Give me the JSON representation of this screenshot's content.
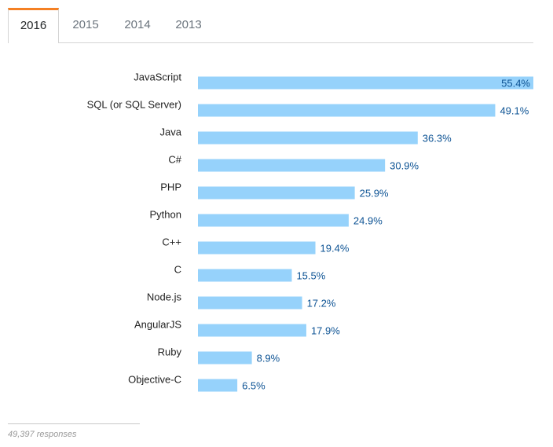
{
  "tabs": [
    {
      "label": "2016",
      "active": true
    },
    {
      "label": "2015",
      "active": false
    },
    {
      "label": "2014",
      "active": false
    },
    {
      "label": "2013",
      "active": false
    }
  ],
  "footer": {
    "responses": "49,397 responses"
  },
  "colors": {
    "bar": "#96d2fb",
    "value_label": "#0d5394",
    "active_tab_accent": "#f48024"
  },
  "chart_data": {
    "type": "bar",
    "orientation": "horizontal",
    "title": "",
    "xlabel": "",
    "ylabel": "",
    "xlim": [
      0,
      55.4
    ],
    "unit": "%",
    "categories": [
      "JavaScript",
      "SQL (or SQL Server)",
      "Java",
      "C#",
      "PHP",
      "Python",
      "C++",
      "C",
      "Node.js",
      "AngularJS",
      "Ruby",
      "Objective-C"
    ],
    "values": [
      55.4,
      49.1,
      36.3,
      30.9,
      25.9,
      24.9,
      19.4,
      15.5,
      17.2,
      17.9,
      8.9,
      6.5
    ],
    "value_labels": [
      "55.4%",
      "49.1%",
      "36.3%",
      "30.9%",
      "25.9%",
      "24.9%",
      "19.4%",
      "15.5%",
      "17.2%",
      "17.9%",
      "8.9%",
      "6.5%"
    ]
  }
}
